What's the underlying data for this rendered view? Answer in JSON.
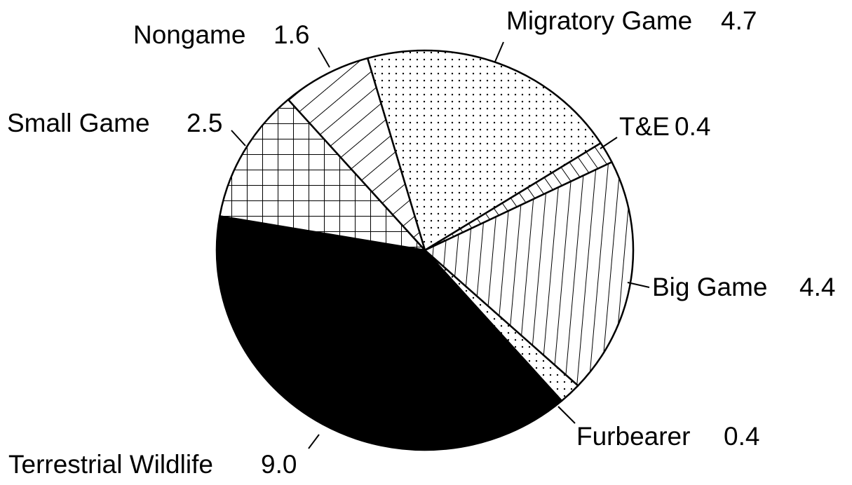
{
  "chart_data": {
    "type": "pie",
    "categories": [
      "Migratory Game",
      "T&E",
      "Big Game",
      "Furbearer",
      "Terrestrial Wildlife",
      "Small Game",
      "Nongame"
    ],
    "values": [
      4.7,
      0.4,
      4.4,
      0.4,
      9.0,
      2.5,
      1.6
    ],
    "value_labels": [
      "4.7",
      "0.4",
      "4.4",
      "0.4",
      "9.0",
      "2.5",
      "1.6"
    ],
    "patterns": [
      "dots",
      "diagonal",
      "vertical",
      "dots",
      "solid",
      "grid",
      "hatch"
    ]
  }
}
